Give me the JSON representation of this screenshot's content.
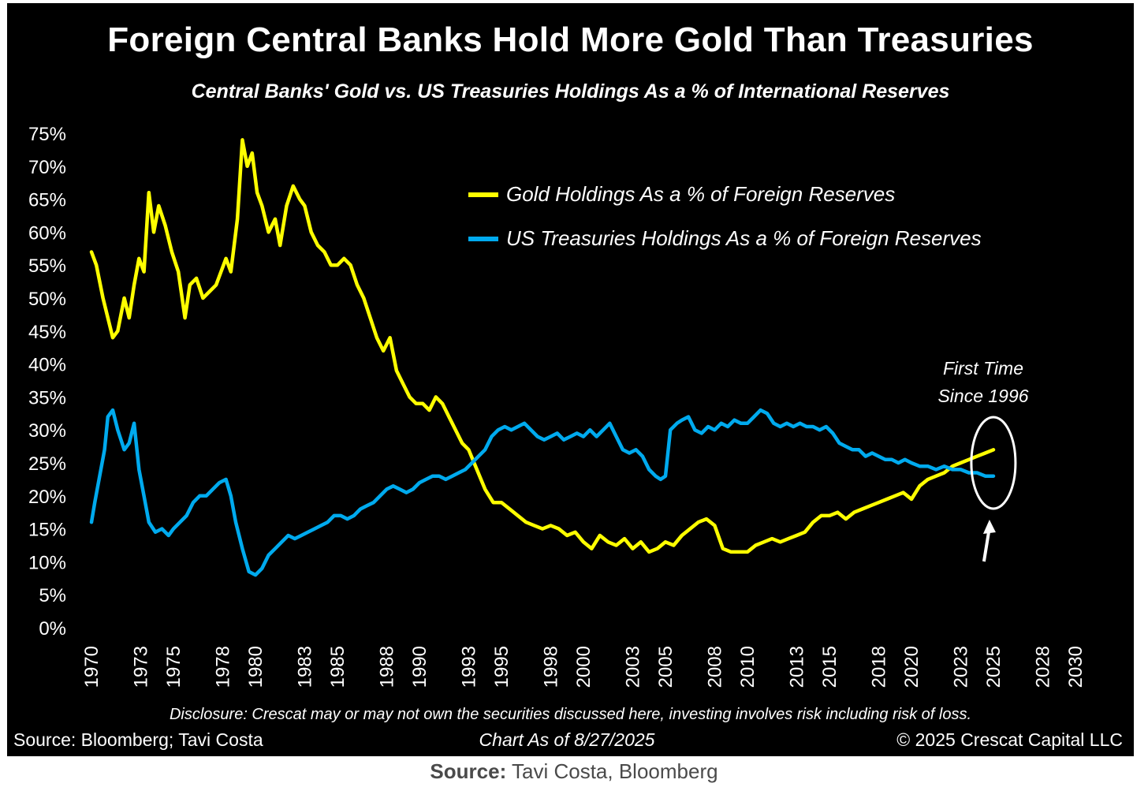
{
  "page": {
    "caption_label": "Source:",
    "caption_text": "Tavi Costa, Bloomberg"
  },
  "chart_data": {
    "type": "line",
    "title": "Foreign Central Banks Hold More Gold Than Treasuries",
    "subtitle": "Central Banks' Gold vs. US Treasuries Holdings As a % of International Reserves",
    "ylim": [
      0,
      75
    ],
    "xlim": [
      1970,
      2030
    ],
    "y_ticks": [
      0,
      5,
      10,
      15,
      20,
      25,
      30,
      35,
      40,
      45,
      50,
      55,
      60,
      65,
      70,
      75
    ],
    "y_tick_labels": [
      "0%",
      "5%",
      "10%",
      "15%",
      "20%",
      "25%",
      "30%",
      "35%",
      "40%",
      "45%",
      "50%",
      "55%",
      "60%",
      "65%",
      "70%",
      "75%"
    ],
    "x_ticks": [
      1970,
      1973,
      1975,
      1978,
      1980,
      1983,
      1985,
      1988,
      1990,
      1993,
      1995,
      1998,
      2000,
      2003,
      2005,
      2008,
      2010,
      2013,
      2015,
      2018,
      2020,
      2023,
      2025,
      2028,
      2030
    ],
    "x_tick_labels": [
      "1970",
      "1973",
      "1975",
      "1978",
      "1980",
      "1983",
      "1985",
      "1988",
      "1990",
      "1993",
      "1995",
      "1998",
      "2000",
      "2003",
      "2005",
      "2008",
      "2010",
      "2013",
      "2015",
      "2018",
      "2020",
      "2023",
      "2025",
      "2028",
      "2030"
    ],
    "series": [
      {
        "name": "Gold Holdings As a % of Foreign Reserves",
        "color": "#ffff00",
        "points": [
          [
            1970.0,
            57
          ],
          [
            1970.3,
            55
          ],
          [
            1970.7,
            50
          ],
          [
            1971.0,
            47
          ],
          [
            1971.3,
            44
          ],
          [
            1971.6,
            45
          ],
          [
            1972.0,
            50
          ],
          [
            1972.3,
            47
          ],
          [
            1972.6,
            52
          ],
          [
            1972.9,
            56
          ],
          [
            1973.2,
            54
          ],
          [
            1973.5,
            66
          ],
          [
            1973.8,
            60
          ],
          [
            1974.1,
            64
          ],
          [
            1974.5,
            61
          ],
          [
            1974.9,
            57
          ],
          [
            1975.3,
            54
          ],
          [
            1975.7,
            47
          ],
          [
            1976.0,
            52
          ],
          [
            1976.4,
            53
          ],
          [
            1976.8,
            50
          ],
          [
            1977.2,
            51
          ],
          [
            1977.6,
            52
          ],
          [
            1977.9,
            54
          ],
          [
            1978.2,
            56
          ],
          [
            1978.5,
            54
          ],
          [
            1978.9,
            62
          ],
          [
            1979.2,
            74
          ],
          [
            1979.5,
            70
          ],
          [
            1979.8,
            72
          ],
          [
            1980.1,
            66
          ],
          [
            1980.4,
            64
          ],
          [
            1980.8,
            60
          ],
          [
            1981.2,
            62
          ],
          [
            1981.5,
            58
          ],
          [
            1981.9,
            64
          ],
          [
            1982.3,
            67
          ],
          [
            1982.7,
            65
          ],
          [
            1983.0,
            64
          ],
          [
            1983.4,
            60
          ],
          [
            1983.8,
            58
          ],
          [
            1984.2,
            57
          ],
          [
            1984.6,
            55
          ],
          [
            1985.0,
            55
          ],
          [
            1985.4,
            56
          ],
          [
            1985.8,
            55
          ],
          [
            1986.2,
            52
          ],
          [
            1986.6,
            50
          ],
          [
            1987.0,
            47
          ],
          [
            1987.4,
            44
          ],
          [
            1987.8,
            42
          ],
          [
            1988.2,
            44
          ],
          [
            1988.6,
            39
          ],
          [
            1989.0,
            37
          ],
          [
            1989.4,
            35
          ],
          [
            1989.8,
            34
          ],
          [
            1990.2,
            34
          ],
          [
            1990.6,
            33
          ],
          [
            1991.0,
            35
          ],
          [
            1991.4,
            34
          ],
          [
            1991.8,
            32
          ],
          [
            1992.2,
            30
          ],
          [
            1992.6,
            28
          ],
          [
            1993.0,
            27
          ],
          [
            1993.5,
            24
          ],
          [
            1994.0,
            21
          ],
          [
            1994.5,
            19
          ],
          [
            1995.0,
            19
          ],
          [
            1995.5,
            18
          ],
          [
            1996.0,
            17
          ],
          [
            1996.5,
            16
          ],
          [
            1997.0,
            15.5
          ],
          [
            1997.5,
            15
          ],
          [
            1998.0,
            15.5
          ],
          [
            1998.5,
            15
          ],
          [
            1999.0,
            14
          ],
          [
            1999.5,
            14.5
          ],
          [
            2000.0,
            13
          ],
          [
            2000.5,
            12
          ],
          [
            2001.0,
            14
          ],
          [
            2001.5,
            13
          ],
          [
            2002.0,
            12.5
          ],
          [
            2002.5,
            13.5
          ],
          [
            2003.0,
            12
          ],
          [
            2003.5,
            13
          ],
          [
            2004.0,
            11.5
          ],
          [
            2004.5,
            12
          ],
          [
            2005.0,
            13
          ],
          [
            2005.5,
            12.5
          ],
          [
            2006.0,
            14
          ],
          [
            2006.5,
            15
          ],
          [
            2007.0,
            16
          ],
          [
            2007.5,
            16.5
          ],
          [
            2008.0,
            15.5
          ],
          [
            2008.5,
            12
          ],
          [
            2009.0,
            11.5
          ],
          [
            2009.5,
            11.5
          ],
          [
            2010.0,
            11.5
          ],
          [
            2010.5,
            12.5
          ],
          [
            2011.0,
            13
          ],
          [
            2011.5,
            13.5
          ],
          [
            2012.0,
            13
          ],
          [
            2012.5,
            13.5
          ],
          [
            2013.0,
            14
          ],
          [
            2013.5,
            14.5
          ],
          [
            2014.0,
            16
          ],
          [
            2014.5,
            17
          ],
          [
            2015.0,
            17
          ],
          [
            2015.5,
            17.5
          ],
          [
            2016.0,
            16.5
          ],
          [
            2016.5,
            17.5
          ],
          [
            2017.0,
            18
          ],
          [
            2017.5,
            18.5
          ],
          [
            2018.0,
            19
          ],
          [
            2018.5,
            19.5
          ],
          [
            2019.0,
            20
          ],
          [
            2019.5,
            20.5
          ],
          [
            2020.0,
            19.5
          ],
          [
            2020.5,
            21.5
          ],
          [
            2021.0,
            22.5
          ],
          [
            2021.5,
            23
          ],
          [
            2022.0,
            23.5
          ],
          [
            2022.5,
            24.5
          ],
          [
            2023.0,
            25
          ],
          [
            2023.5,
            25.5
          ],
          [
            2024.0,
            26
          ],
          [
            2024.5,
            26.5
          ],
          [
            2025.0,
            27
          ]
        ]
      },
      {
        "name": "US Treasuries Holdings As a % of Foreign Reserves",
        "color": "#00aaee",
        "points": [
          [
            1970.0,
            16
          ],
          [
            1970.2,
            19
          ],
          [
            1970.5,
            23
          ],
          [
            1970.8,
            27
          ],
          [
            1971.0,
            32
          ],
          [
            1971.3,
            33
          ],
          [
            1971.6,
            30
          ],
          [
            1972.0,
            27
          ],
          [
            1972.3,
            28
          ],
          [
            1972.6,
            31
          ],
          [
            1972.9,
            24
          ],
          [
            1973.2,
            20
          ],
          [
            1973.5,
            16
          ],
          [
            1973.9,
            14.5
          ],
          [
            1974.3,
            15
          ],
          [
            1974.7,
            14
          ],
          [
            1975.0,
            15
          ],
          [
            1975.4,
            16
          ],
          [
            1975.8,
            17
          ],
          [
            1976.2,
            19
          ],
          [
            1976.6,
            20
          ],
          [
            1977.0,
            20
          ],
          [
            1977.4,
            21
          ],
          [
            1977.8,
            22
          ],
          [
            1978.2,
            22.5
          ],
          [
            1978.5,
            20
          ],
          [
            1978.8,
            16
          ],
          [
            1979.2,
            12
          ],
          [
            1979.6,
            8.5
          ],
          [
            1980.0,
            8
          ],
          [
            1980.4,
            9
          ],
          [
            1980.8,
            11
          ],
          [
            1981.2,
            12
          ],
          [
            1981.6,
            13
          ],
          [
            1982.0,
            14
          ],
          [
            1982.4,
            13.5
          ],
          [
            1982.8,
            14
          ],
          [
            1983.2,
            14.5
          ],
          [
            1983.6,
            15
          ],
          [
            1984.0,
            15.5
          ],
          [
            1984.4,
            16
          ],
          [
            1984.8,
            17
          ],
          [
            1985.2,
            17
          ],
          [
            1985.6,
            16.5
          ],
          [
            1986.0,
            17
          ],
          [
            1986.4,
            18
          ],
          [
            1986.8,
            18.5
          ],
          [
            1987.2,
            19
          ],
          [
            1987.6,
            20
          ],
          [
            1988.0,
            21
          ],
          [
            1988.4,
            21.5
          ],
          [
            1988.8,
            21
          ],
          [
            1989.2,
            20.5
          ],
          [
            1989.6,
            21
          ],
          [
            1990.0,
            22
          ],
          [
            1990.4,
            22.5
          ],
          [
            1990.8,
            23
          ],
          [
            1991.2,
            23
          ],
          [
            1991.6,
            22.5
          ],
          [
            1992.0,
            23
          ],
          [
            1992.4,
            23.5
          ],
          [
            1992.8,
            24
          ],
          [
            1993.2,
            25
          ],
          [
            1993.6,
            26
          ],
          [
            1994.0,
            27
          ],
          [
            1994.4,
            29
          ],
          [
            1994.8,
            30
          ],
          [
            1995.2,
            30.5
          ],
          [
            1995.6,
            30
          ],
          [
            1996.0,
            30.5
          ],
          [
            1996.4,
            31
          ],
          [
            1996.8,
            30
          ],
          [
            1997.2,
            29
          ],
          [
            1997.6,
            28.5
          ],
          [
            1998.0,
            29
          ],
          [
            1998.4,
            29.5
          ],
          [
            1998.8,
            28.5
          ],
          [
            1999.2,
            29
          ],
          [
            1999.6,
            29.5
          ],
          [
            2000.0,
            29
          ],
          [
            2000.4,
            30
          ],
          [
            2000.8,
            29
          ],
          [
            2001.2,
            30
          ],
          [
            2001.6,
            31
          ],
          [
            2002.0,
            29
          ],
          [
            2002.4,
            27
          ],
          [
            2002.8,
            26.5
          ],
          [
            2003.2,
            27
          ],
          [
            2003.6,
            26
          ],
          [
            2004.0,
            24
          ],
          [
            2004.4,
            23
          ],
          [
            2004.7,
            22.5
          ],
          [
            2005.0,
            23
          ],
          [
            2005.3,
            30
          ],
          [
            2005.7,
            31
          ],
          [
            2006.0,
            31.5
          ],
          [
            2006.4,
            32
          ],
          [
            2006.8,
            30
          ],
          [
            2007.2,
            29.5
          ],
          [
            2007.6,
            30.5
          ],
          [
            2008.0,
            30
          ],
          [
            2008.4,
            31
          ],
          [
            2008.8,
            30.5
          ],
          [
            2009.2,
            31.5
          ],
          [
            2009.6,
            31
          ],
          [
            2010.0,
            31
          ],
          [
            2010.4,
            32
          ],
          [
            2010.8,
            33
          ],
          [
            2011.2,
            32.5
          ],
          [
            2011.6,
            31
          ],
          [
            2012.0,
            30.5
          ],
          [
            2012.4,
            31
          ],
          [
            2012.8,
            30.5
          ],
          [
            2013.2,
            31
          ],
          [
            2013.6,
            30.5
          ],
          [
            2014.0,
            30.5
          ],
          [
            2014.4,
            30
          ],
          [
            2014.8,
            30.5
          ],
          [
            2015.2,
            29.5
          ],
          [
            2015.6,
            28
          ],
          [
            2016.0,
            27.5
          ],
          [
            2016.4,
            27
          ],
          [
            2016.8,
            27
          ],
          [
            2017.2,
            26
          ],
          [
            2017.6,
            26.5
          ],
          [
            2018.0,
            26
          ],
          [
            2018.4,
            25.5
          ],
          [
            2018.8,
            25.5
          ],
          [
            2019.2,
            25
          ],
          [
            2019.6,
            25.5
          ],
          [
            2020.0,
            25
          ],
          [
            2020.5,
            24.5
          ],
          [
            2021.0,
            24.5
          ],
          [
            2021.5,
            24
          ],
          [
            2022.0,
            24.5
          ],
          [
            2022.5,
            24
          ],
          [
            2023.0,
            24
          ],
          [
            2023.5,
            23.5
          ],
          [
            2024.0,
            23.5
          ],
          [
            2024.5,
            23
          ],
          [
            2025.0,
            23
          ]
        ]
      }
    ],
    "legend": [
      {
        "label": "Gold Holdings As a % of Foreign Reserves",
        "color": "#ffff00"
      },
      {
        "label": "US Treasuries Holdings As a % of Foreign Reserves",
        "color": "#00aaee"
      }
    ],
    "annotation": {
      "line1": "First Time",
      "line2": "Since 1996",
      "target_year": 2024.9,
      "target_value": 25
    },
    "footer": {
      "disclosure": "Disclosure: Crescat may or may not own the securities discussed here, investing involves risk including risk of loss.",
      "source": "Source: Bloomberg; Tavi Costa",
      "chart_date": "Chart As of 8/27/2025",
      "copyright": "© 2025 Crescat Capital LLC"
    }
  }
}
